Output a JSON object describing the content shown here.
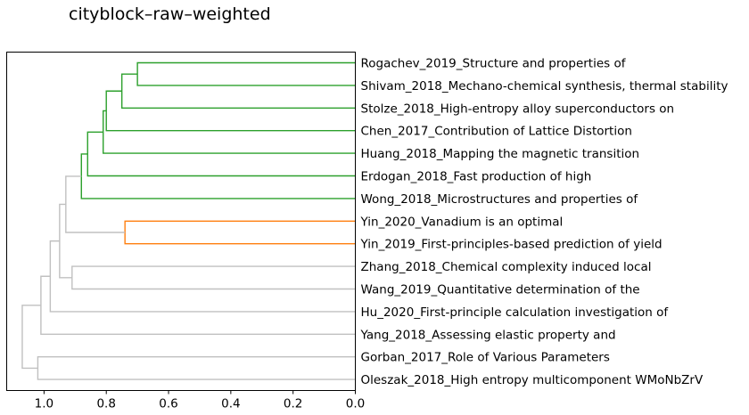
{
  "chart_data": {
    "type": "dendrogram",
    "title": "cityblock–raw–weighted",
    "orientation": "left",
    "xlim": [
      1.12,
      0.0
    ],
    "x_ticks": [
      1.0,
      0.8,
      0.6,
      0.4,
      0.2,
      0.0
    ],
    "x_tick_labels": [
      "1.0",
      "0.8",
      "0.6",
      "0.4",
      "0.2",
      "0.0"
    ],
    "leaves": [
      "Rogachev_2019_Structure and properties of",
      "Shivam_2018_Mechano-chemical synthesis, thermal stability",
      "Stolze_2018_High-entropy alloy superconductors on",
      "Chen_2017_Contribution of Lattice Distortion",
      "Huang_2018_Mapping the magnetic transition",
      "Erdogan_2018_Fast production of high",
      "Wong_2018_Microstructures and properties of",
      "Yin_2020_Vanadium is an optimal",
      "Yin_2019_First-principles-based prediction of yield",
      "Zhang_2018_Chemical complexity induced local",
      "Wang_2019_Quantitative determination of the",
      "Hu_2020_First-principle calculation investigation of",
      "Yang_2018_Assessing elastic property and",
      "Gorban_2017_Role of Various Parameters",
      "Oleszak_2018_High entropy multicomponent WMoNbZrV"
    ],
    "colors": {
      "cluster_1": "#2ca02c",
      "cluster_2": "#ff7f0e",
      "above_threshold": "#c0c0c0"
    },
    "merges": [
      {
        "left": 0,
        "right": 1,
        "height": 0.7,
        "color": "cluster_1"
      },
      {
        "left": "m0",
        "right": 2,
        "height": 0.75,
        "color": "cluster_1"
      },
      {
        "left": "m1",
        "right": 3,
        "height": 0.8,
        "color": "cluster_1"
      },
      {
        "left": "m2",
        "right": 4,
        "height": 0.81,
        "color": "cluster_1"
      },
      {
        "left": "m3",
        "right": 5,
        "height": 0.86,
        "color": "cluster_1"
      },
      {
        "left": "m4",
        "right": 6,
        "height": 0.88,
        "color": "cluster_1"
      },
      {
        "left": 7,
        "right": 8,
        "height": 0.74,
        "color": "cluster_2"
      },
      {
        "left": "m5",
        "right": "m6",
        "height": 0.93,
        "color": "above_threshold"
      },
      {
        "left": 9,
        "right": 10,
        "height": 0.91,
        "color": "above_threshold"
      },
      {
        "left": "m7",
        "right": "m8",
        "height": 0.95,
        "color": "above_threshold"
      },
      {
        "left": "m9",
        "right": 11,
        "height": 0.98,
        "color": "above_threshold"
      },
      {
        "left": "m10",
        "right": 12,
        "height": 1.01,
        "color": "above_threshold"
      },
      {
        "left": 13,
        "right": 14,
        "height": 1.02,
        "color": "above_threshold"
      },
      {
        "left": "m11",
        "right": "m12",
        "height": 1.07,
        "color": "above_threshold"
      }
    ]
  }
}
